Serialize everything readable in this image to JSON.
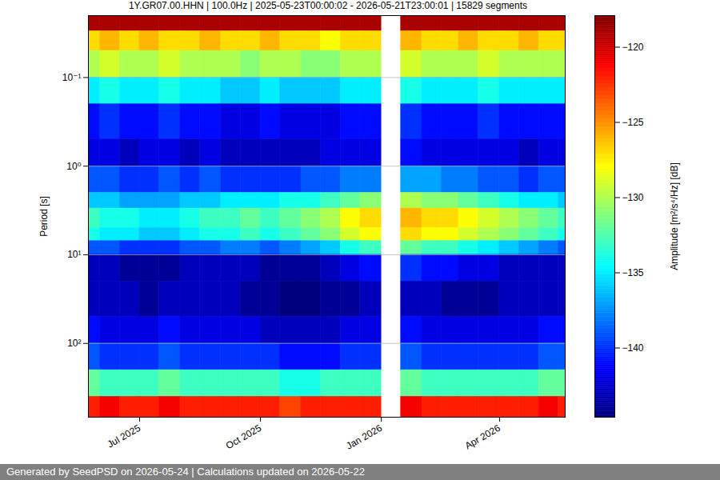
{
  "chart_data": {
    "type": "heatmap",
    "title": "1Y.GR07.00.HHN | 100.0Hz | 2025-05-23T00:00:02 - 2026-05-21T23:00:01 | 15829 segments",
    "caption": "Generated by SeedPSD on 2026-05-24 | Calculations updated on 2026-05-22",
    "y_label": "Period [s]",
    "x_bins": [
      "2025-05-23",
      "2025-06-01",
      "2025-06-16",
      "2025-07-01",
      "2025-07-16",
      "2025-08-01",
      "2025-08-16",
      "2025-09-01",
      "2025-09-16",
      "2025-10-01",
      "2025-10-16",
      "2025-11-01",
      "2025-11-16",
      "2025-12-01",
      "2025-12-16",
      "2026-01-01",
      "2026-01-16",
      "2026-02-01",
      "2026-02-16",
      "2026-03-01",
      "2026-03-16",
      "2026-04-01",
      "2026-04-16",
      "2026-05-01",
      "2026-05-16",
      "2026-05-21"
    ],
    "y_bins": [
      0.02,
      0.03,
      0.05,
      0.1,
      0.2,
      0.5,
      1,
      2,
      3,
      5,
      7,
      10,
      20,
      50,
      100,
      200,
      400,
      680
    ],
    "values": [
      [
        -119,
        -119,
        -119,
        -119,
        -119,
        -119,
        -119,
        -119,
        -119,
        -119,
        -119,
        -119,
        -119,
        -119,
        -119,
        null,
        -119,
        -119,
        -119,
        -119,
        -119,
        -119,
        -119,
        -119,
        -119
      ],
      [
        -127,
        -126,
        -127,
        -126,
        -127,
        -127,
        -126,
        -127,
        -127,
        -126,
        -127,
        -127,
        -128,
        -127,
        -127,
        null,
        -126,
        -127,
        -127,
        -126,
        -127,
        -127,
        -126,
        -127,
        -127
      ],
      [
        -130,
        -129,
        -130,
        -130,
        -129,
        -130,
        -130,
        -130,
        -131,
        -130,
        -130,
        -131,
        -131,
        -130,
        -130,
        null,
        -129,
        -130,
        -130,
        -130,
        -129,
        -130,
        -130,
        -130,
        -130
      ],
      [
        -135,
        -134,
        -135,
        -135,
        -134,
        -135,
        -135,
        -136,
        -136,
        -135,
        -136,
        -136,
        -136,
        -135,
        -135,
        null,
        -134,
        -135,
        -135,
        -135,
        -134,
        -135,
        -135,
        -135,
        -135
      ],
      [
        -141,
        -140,
        -141,
        -141,
        -140,
        -141,
        -141,
        -142,
        -142,
        -141,
        -142,
        -142,
        -142,
        -141,
        -141,
        null,
        -140,
        -141,
        -141,
        -141,
        -140,
        -141,
        -141,
        -141,
        -141
      ],
      [
        -142,
        -142,
        -143,
        -142,
        -142,
        -143,
        -142,
        -143,
        -143,
        -143,
        -143,
        -143,
        -142,
        -142,
        -142,
        null,
        -141,
        -142,
        -142,
        -142,
        -142,
        -142,
        -143,
        -142,
        -142
      ],
      [
        -139,
        -139,
        -140,
        -140,
        -139,
        -140,
        -139,
        -140,
        -140,
        -140,
        -140,
        -139,
        -139,
        -138,
        -138,
        null,
        -137,
        -137,
        -138,
        -138,
        -139,
        -139,
        -140,
        -139,
        -139
      ],
      [
        -136,
        -136,
        -137,
        -137,
        -137,
        -136,
        -136,
        -135,
        -135,
        -135,
        -134,
        -134,
        -133,
        -132,
        -131,
        null,
        -130,
        -131,
        -131,
        -132,
        -133,
        -134,
        -135,
        -135,
        -136
      ],
      [
        -133,
        -134,
        -134,
        -135,
        -135,
        -134,
        -133,
        -133,
        -132,
        -133,
        -132,
        -131,
        -130,
        -128,
        -127,
        null,
        -126,
        -127,
        -127,
        -128,
        -129,
        -130,
        -131,
        -132,
        -133
      ],
      [
        -134,
        -135,
        -135,
        -136,
        -136,
        -135,
        -134,
        -134,
        -133,
        -134,
        -133,
        -132,
        -131,
        -129,
        -128,
        null,
        -127,
        -128,
        -128,
        -129,
        -130,
        -131,
        -132,
        -133,
        -134
      ],
      [
        -139,
        -139,
        -140,
        -140,
        -140,
        -139,
        -139,
        -138,
        -138,
        -139,
        -138,
        -137,
        -136,
        -134,
        -133,
        null,
        -132,
        -133,
        -133,
        -134,
        -135,
        -136,
        -137,
        -138,
        -139
      ],
      [
        -143,
        -143,
        -144,
        -144,
        -144,
        -143,
        -143,
        -143,
        -143,
        -144,
        -144,
        -144,
        -143,
        -142,
        -141,
        null,
        -140,
        -141,
        -141,
        -142,
        -142,
        -143,
        -143,
        -143,
        -143
      ],
      [
        -143,
        -143,
        -143,
        -144,
        -143,
        -143,
        -143,
        -143,
        -144,
        -144,
        -145,
        -145,
        -144,
        -144,
        -143,
        null,
        -143,
        -143,
        -144,
        -144,
        -144,
        -143,
        -143,
        -143,
        -143
      ],
      [
        -141,
        -142,
        -142,
        -142,
        -141,
        -142,
        -142,
        -142,
        -142,
        -143,
        -143,
        -143,
        -143,
        -142,
        -142,
        null,
        -141,
        -142,
        -142,
        -142,
        -142,
        -142,
        -142,
        -141,
        -141
      ],
      [
        -139,
        -140,
        -140,
        -140,
        -139,
        -140,
        -140,
        -140,
        -140,
        -140,
        -141,
        -141,
        -141,
        -140,
        -140,
        null,
        -139,
        -140,
        -140,
        -140,
        -140,
        -140,
        -140,
        -139,
        -139
      ],
      [
        -132,
        -133,
        -133,
        -133,
        -132,
        -133,
        -133,
        -133,
        -133,
        -133,
        -134,
        -134,
        -133,
        -133,
        -133,
        null,
        -132,
        -133,
        -133,
        -133,
        -133,
        -133,
        -133,
        -132,
        -132
      ],
      [
        -122,
        -121,
        -122,
        -122,
        -121,
        -122,
        -122,
        -122,
        -122,
        -122,
        -123,
        -122,
        -122,
        -122,
        -122,
        null,
        -121,
        -122,
        -122,
        -122,
        -122,
        -122,
        -122,
        -121,
        -122
      ]
    ],
    "xlim": [
      "2025-05-23",
      "2026-05-21"
    ],
    "xticks": [
      {
        "value": "2025-07-01",
        "label": "Jul 2025"
      },
      {
        "value": "2025-10-01",
        "label": "Oct 2025"
      },
      {
        "value": "2026-01-01",
        "label": "Jan 2026"
      },
      {
        "value": "2026-04-01",
        "label": "Apr 2026"
      }
    ],
    "ylim": [
      0.02,
      680
    ],
    "yticks": [
      {
        "value": 0.1,
        "label": "10⁻¹"
      },
      {
        "value": 1,
        "label": "10⁰"
      },
      {
        "value": 10,
        "label": "10¹"
      },
      {
        "value": 100,
        "label": "10²"
      }
    ],
    "log": "y",
    "grid": true,
    "colorbar": {
      "label": "Amplitude [m²/s⁴/Hz] [dB]",
      "lim": [
        -144.6,
        -117.9
      ],
      "ticks": [
        -140,
        -135,
        -130,
        -125,
        -120
      ],
      "color": "jet"
    }
  }
}
